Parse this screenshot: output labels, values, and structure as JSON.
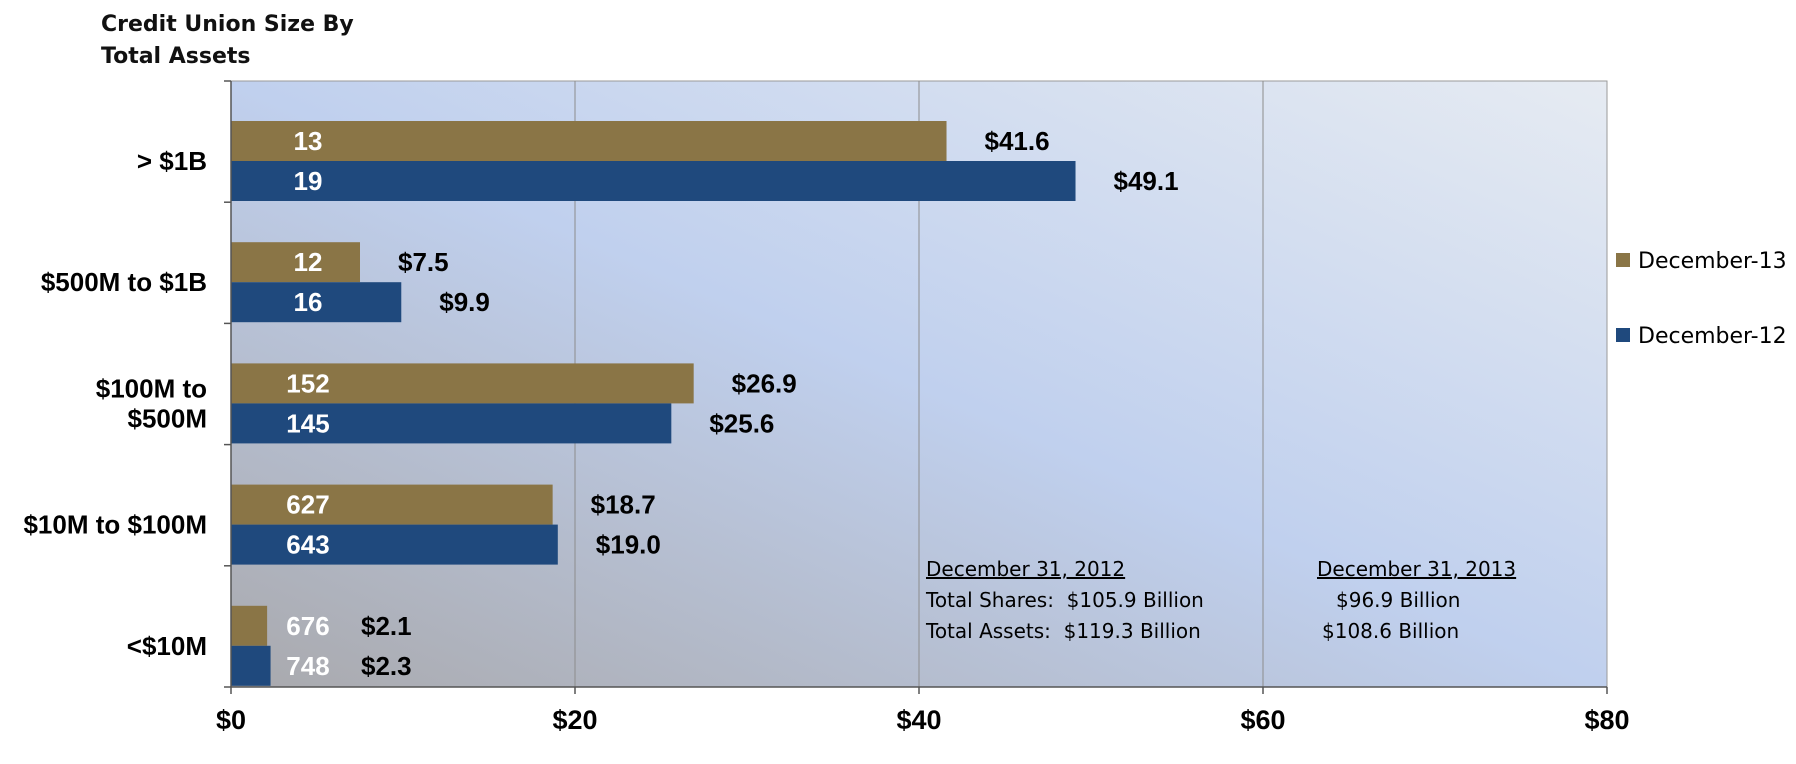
{
  "chart_data": {
    "type": "bar",
    "orientation": "horizontal",
    "title_lines": [
      "Credit Union Size By",
      "Total Assets"
    ],
    "categories": [
      [
        "> $1B"
      ],
      [
        "$500M to $1B"
      ],
      [
        "$100M to",
        "$500M"
      ],
      [
        "$10M to $100M"
      ],
      [
        "<$10M"
      ]
    ],
    "series": [
      {
        "name": "December-13",
        "color": "#8a7546",
        "values": [
          41.6,
          7.5,
          26.9,
          18.7,
          2.1
        ],
        "value_labels": [
          "$41.6",
          "$7.5",
          "$26.9",
          "$18.7",
          "$2.1"
        ],
        "count_labels": [
          "13",
          "12",
          "152",
          "627",
          "676"
        ]
      },
      {
        "name": "December-12",
        "color": "#1f497d",
        "values": [
          49.1,
          9.9,
          25.6,
          19.0,
          2.3
        ],
        "value_labels": [
          "$49.1",
          "$9.9",
          "$25.6",
          "$19.0",
          "$2.3"
        ],
        "count_labels": [
          "19",
          "16",
          "145",
          "643",
          "748"
        ]
      }
    ],
    "xlim": [
      0,
      80
    ],
    "x_ticks": [
      0,
      20,
      40,
      60,
      80
    ],
    "x_tick_labels": [
      "$0",
      "$20",
      "$40",
      "$60",
      "$80"
    ],
    "grid": "vertical",
    "legend_position": "right",
    "annotations": {
      "col_2012": {
        "heading": "December 31, 2012",
        "shares": "Total Shares:  $105.9 Billion",
        "assets": "Total Assets:  $119.3 Billion"
      },
      "col_2013": {
        "heading": "December 31, 2013",
        "shares": "$96.9 Billion",
        "assets": "$108.6 Billion"
      }
    }
  }
}
